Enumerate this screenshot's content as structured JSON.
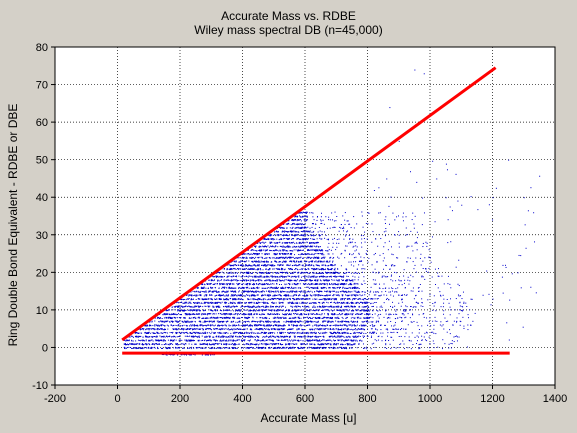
{
  "chart_data": {
    "type": "scatter",
    "title": "Accurate Mass vs. RDBE",
    "subtitle": "Wiley mass spectral DB (n=45,000)",
    "xlabel": "Accurate Mass [u]",
    "ylabel": "Ring Double Bond Equivalent - RDBE or DBE",
    "xlim": [
      -200,
      1400
    ],
    "ylim": [
      -10,
      80
    ],
    "xticks": [
      -200,
      0,
      200,
      400,
      600,
      800,
      1000,
      1200,
      1400
    ],
    "yticks": [
      -10,
      0,
      10,
      20,
      30,
      40,
      50,
      60,
      70,
      80
    ],
    "grid": true,
    "point_color": "#0000cc",
    "line_color": "#ff0000",
    "series": [
      {
        "kind": "scatter",
        "envelope_note_points": [
          [
            60,
            5
          ],
          [
            120,
            9
          ],
          [
            200,
            13
          ],
          [
            300,
            18
          ],
          [
            400,
            24
          ],
          [
            500,
            28
          ],
          [
            600,
            32
          ],
          [
            700,
            35
          ],
          [
            800,
            36
          ],
          [
            900,
            30
          ],
          [
            1000,
            24
          ],
          [
            1100,
            38
          ],
          [
            1200,
            40
          ],
          [
            1250,
            50
          ],
          [
            1300,
            40
          ],
          [
            1330,
            36
          ],
          [
            950,
            74
          ],
          [
            980,
            73
          ],
          [
            900,
            55
          ],
          [
            870,
            64
          ],
          [
            860,
            45
          ],
          [
            1020,
            45
          ],
          [
            1050,
            40
          ],
          [
            1240,
            22
          ],
          [
            1280,
            20
          ],
          [
            1200,
            13
          ],
          [
            1030,
            15
          ]
        ]
      },
      {
        "kind": "line",
        "x": [
          15,
          1210
        ],
        "y": [
          2,
          74.5
        ]
      },
      {
        "kind": "line",
        "x": [
          15,
          1255
        ],
        "y": [
          -1.5,
          -1.5
        ]
      }
    ]
  }
}
